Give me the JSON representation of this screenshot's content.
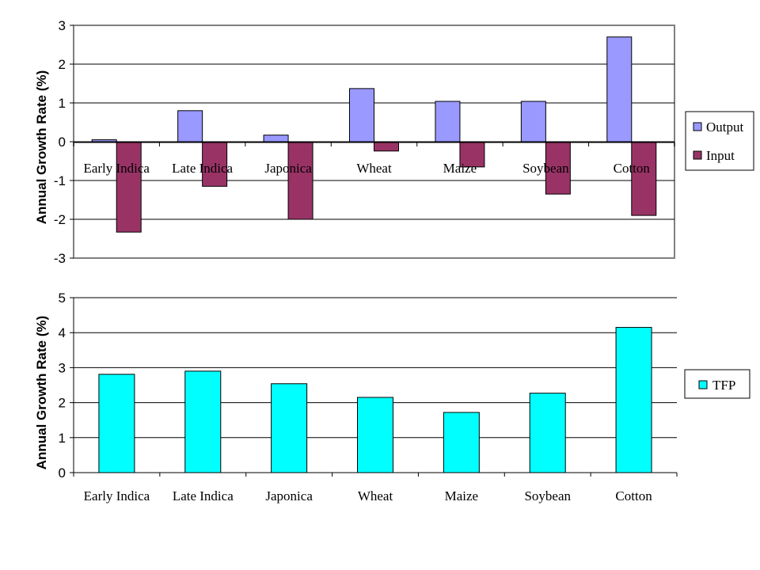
{
  "chart_data": [
    {
      "type": "bar",
      "ylabel": "Annual Growth Rate (%)",
      "ylim": [
        -3,
        3
      ],
      "yticks": [
        "3",
        "2",
        "1",
        "0",
        "-1",
        "-2",
        "-3"
      ],
      "grid": true,
      "legend": "right",
      "categories": [
        "Early Indica",
        "Late Indica",
        "Japonica",
        "Wheat",
        "Maize",
        "Soybean",
        "Cotton"
      ],
      "series": [
        {
          "name": "Output",
          "color": "#9999ff",
          "values": [
            0.05,
            0.8,
            0.17,
            1.37,
            1.04,
            1.04,
            2.7
          ]
        },
        {
          "name": "Input",
          "color": "#993366",
          "values": [
            -2.33,
            -1.15,
            -2.0,
            -0.24,
            -0.65,
            -1.35,
            -1.9
          ]
        }
      ]
    },
    {
      "type": "bar",
      "ylabel": "Annual Growth Rate (%)",
      "ylim": [
        0,
        5
      ],
      "yticks": [
        "5",
        "4",
        "3",
        "2",
        "1",
        "0"
      ],
      "grid": true,
      "legend": "right",
      "categories": [
        "Early Indica",
        "Late Indica",
        "Japonica",
        "Wheat",
        "Maize",
        "Soybean",
        "Cotton"
      ],
      "series": [
        {
          "name": "TFP",
          "color": "#00ffff",
          "values": [
            2.81,
            2.9,
            2.54,
            2.15,
            1.72,
            2.27,
            4.15
          ]
        }
      ]
    }
  ]
}
